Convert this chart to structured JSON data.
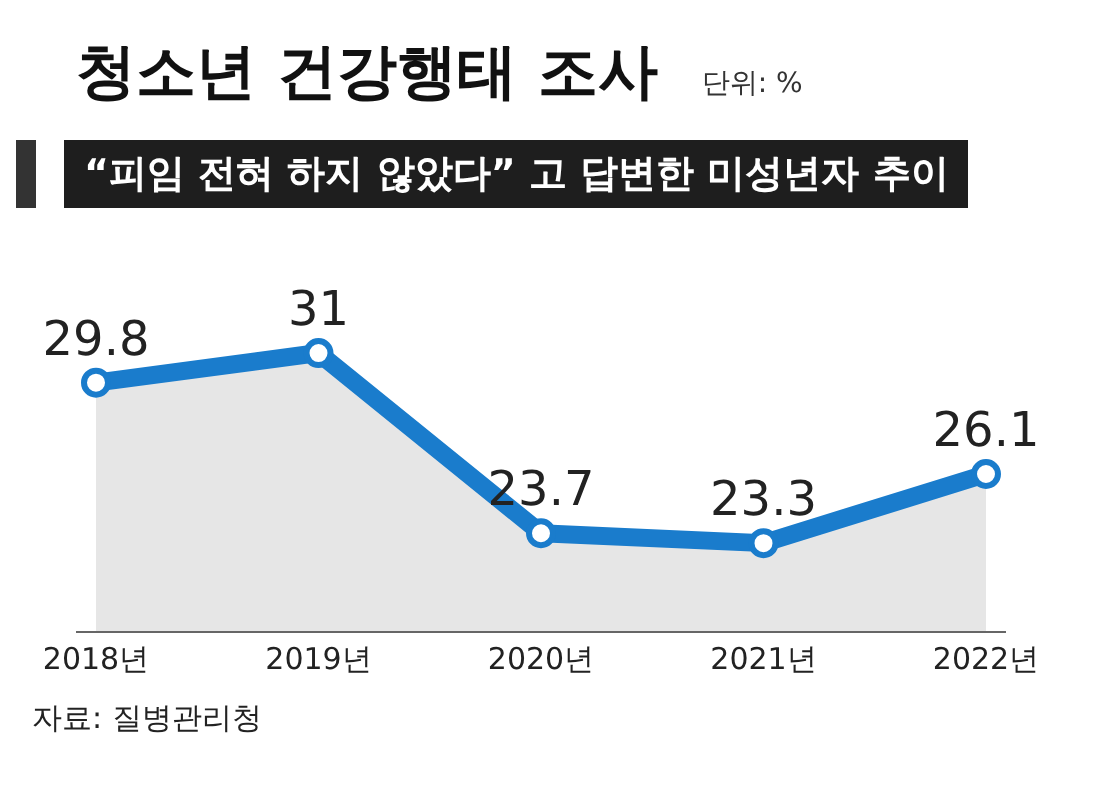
{
  "chart_data": {
    "type": "area",
    "title": "청소년 건강행태 조사",
    "subtitle": "“피임 전혀 하지 않았다” 고 답변한 미성년자 추이",
    "annotations": [
      "단위: %",
      "자료: 질병관리청"
    ],
    "categories": [
      "2018년",
      "2019년",
      "2020년",
      "2021년",
      "2022년"
    ],
    "series": [
      {
        "color": "#1a7ccc",
        "values": [
          29.8,
          31,
          23.7,
          23.3,
          26.1
        ]
      }
    ],
    "tick_labels": "x",
    "data_labels": true,
    "marker": "circle"
  }
}
